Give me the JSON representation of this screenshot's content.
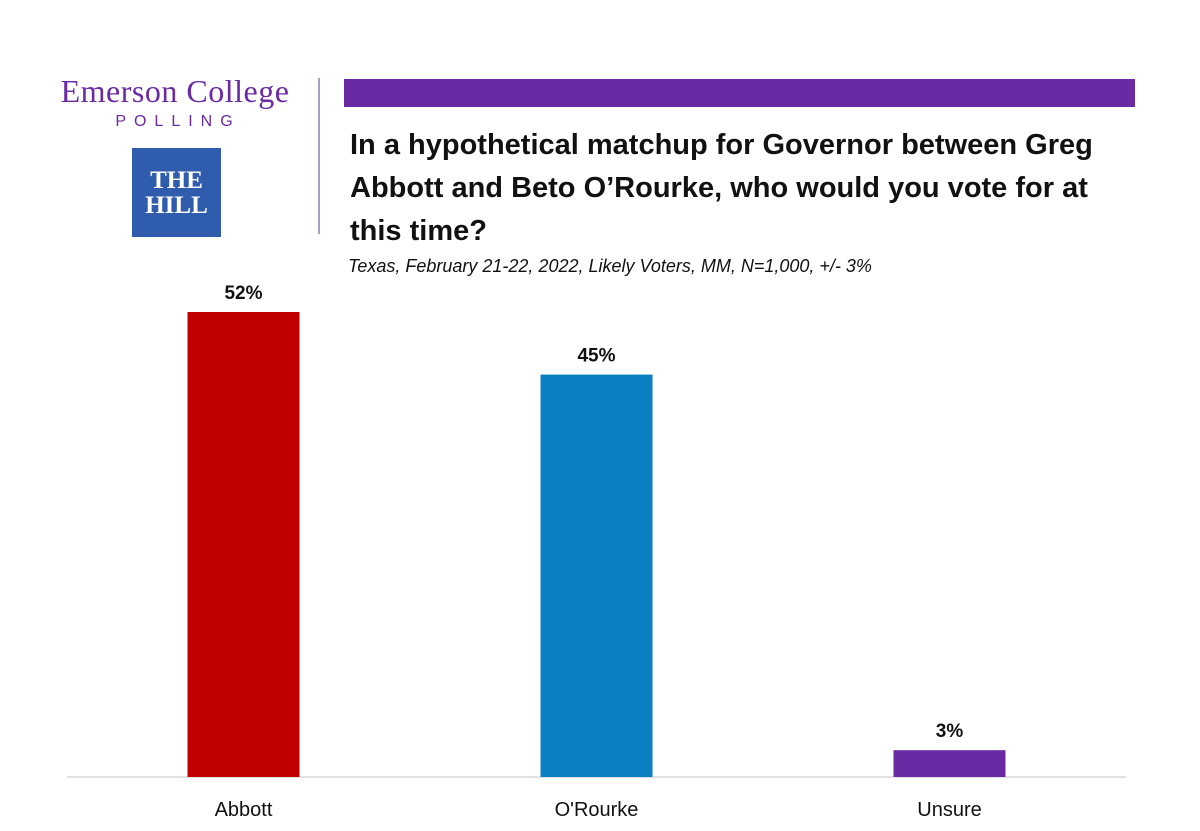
{
  "logos": {
    "emerson_line1": "Emerson College",
    "emerson_line2": "POLLING",
    "hill_line1": "THE",
    "hill_line2": "HILL"
  },
  "colors": {
    "brand_purple": "#6a2aa3",
    "hill_blue": "#2f5cac"
  },
  "chart_data": {
    "type": "bar",
    "title": "In a hypothetical matchup for Governor between Greg Abbott and Beto O’Rourke, who would you vote for at this time?",
    "subtitle": "Texas, February 21-22, 2022, Likely Voters, MM, N=1,000, +/- 3%",
    "categories": [
      "Abbott",
      "O'Rourke",
      "Unsure"
    ],
    "values": [
      52,
      45,
      3
    ],
    "value_labels": [
      "52%",
      "45%",
      "3%"
    ],
    "colors": [
      "#c00000",
      "#0a7fc1",
      "#6a2aa3"
    ],
    "ylim": [
      0,
      52
    ],
    "grid": false,
    "legend": "none"
  }
}
